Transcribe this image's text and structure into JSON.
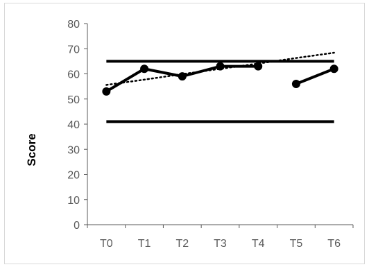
{
  "chart_data": {
    "type": "line",
    "title": "",
    "xlabel": "",
    "ylabel": "Score",
    "categories": [
      "T0",
      "T1",
      "T2",
      "T3",
      "T4",
      "T5",
      "T6"
    ],
    "ylim": [
      0,
      80
    ],
    "yticks": [
      0,
      10,
      20,
      30,
      40,
      50,
      60,
      70,
      80
    ],
    "grid": false,
    "legend": "none",
    "series": [
      {
        "role": "observed",
        "values": [
          53,
          62,
          59,
          63,
          63,
          null,
          62
        ],
        "segments": [
          [
            0,
            4
          ],
          [
            5,
            6
          ]
        ],
        "marker": "circle",
        "color": "#000000"
      },
      {
        "role": "upper reference line",
        "values": [
          65,
          65,
          65,
          65,
          65,
          65,
          65
        ],
        "color": "#000000"
      },
      {
        "role": "lower reference line",
        "values": [
          41,
          41,
          41,
          41,
          41,
          41,
          41
        ],
        "color": "#000000"
      },
      {
        "role": "trend line (dotted)",
        "values": [
          55.6,
          57.7,
          59.9,
          62.0,
          64.1,
          66.3,
          68.4
        ],
        "style": "dotted",
        "color": "#000000"
      }
    ],
    "t5_point": 56
  }
}
